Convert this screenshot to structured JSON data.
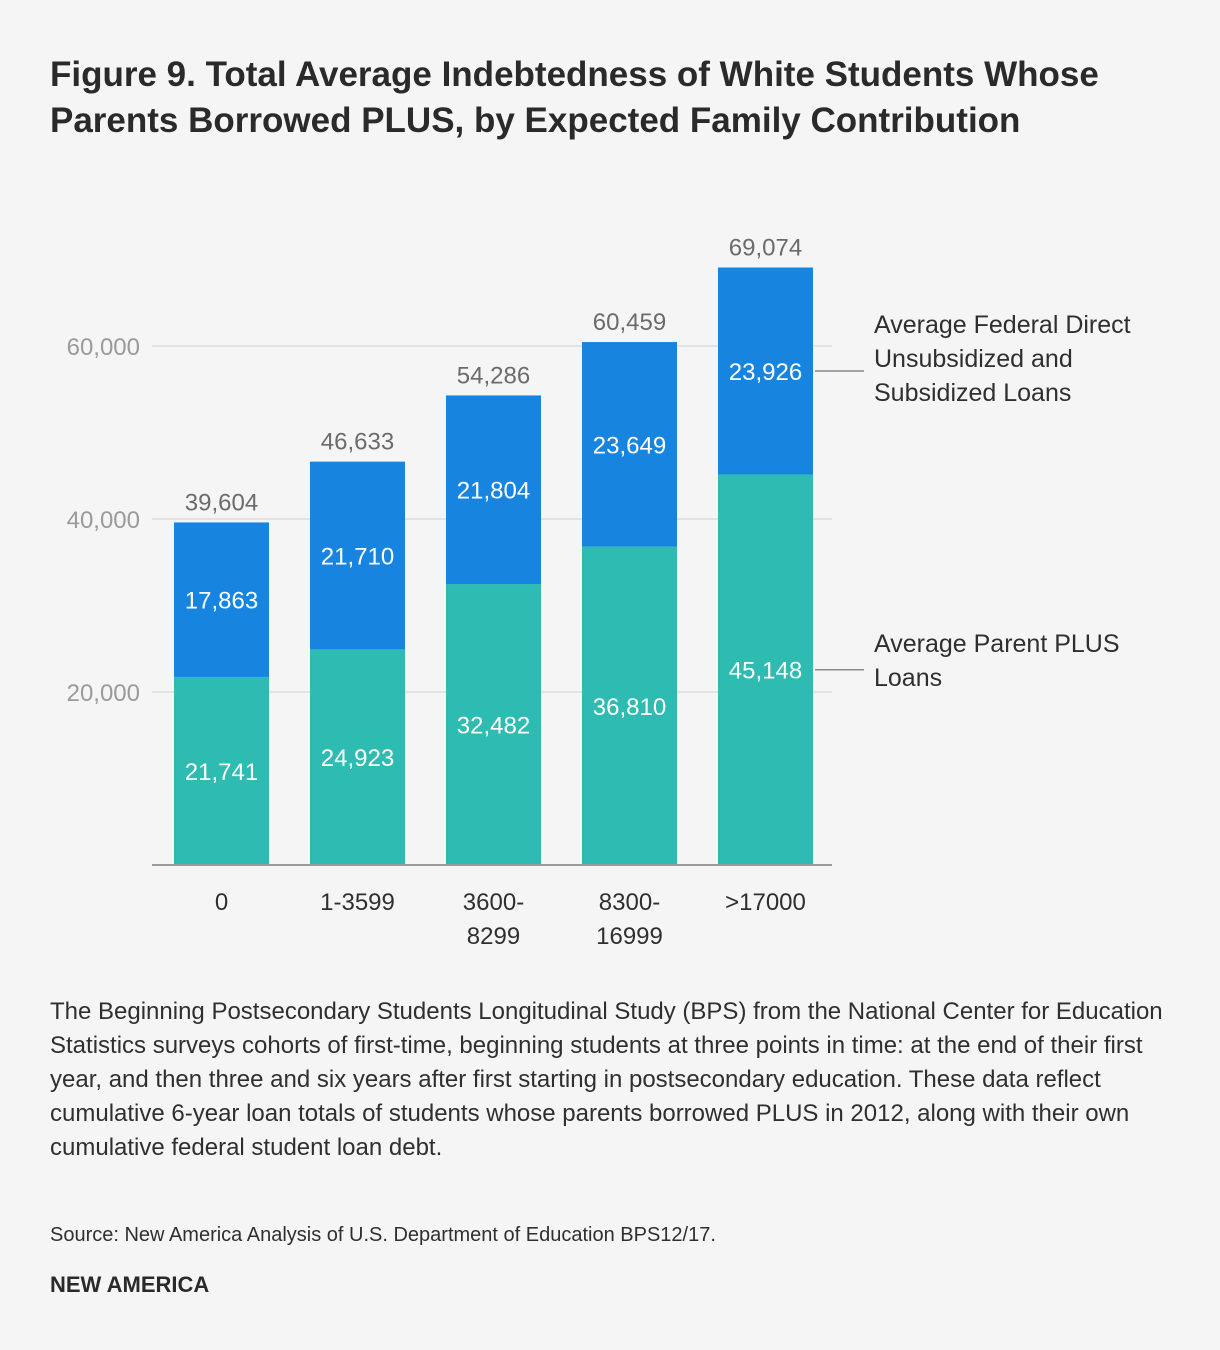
{
  "title": "Figure 9. Total Average Indebtedness of White Students Whose Parents Borrowed PLUS, by Expected Family Contribution",
  "description": "The Beginning Postsecondary Students Longitudinal Study (BPS) from the National Center for Education Statistics surveys cohorts of first-time, beginning students at three points in time: at the end of their first year, and then three and six years after first starting in postsecondary education. These data reflect cumulative 6-year loan totals of students whose parents borrowed PLUS in 2012, along with their own cumulative federal student loan debt.",
  "source": "Source: New America Analysis of U.S. Department of Education BPS12/17.",
  "brand": "NEW AMERICA",
  "colors": {
    "plus": "#2ebbb1",
    "federal": "#1785e0",
    "total_label": "#6b6b6b",
    "axis_label": "#9a9a9a",
    "gridline": "#dcdcdc",
    "axis": "#9a9a9a",
    "bar_label": "#ffffff",
    "text": "#2f2f2f"
  },
  "chart_data": {
    "type": "bar",
    "stacked": true,
    "categories": [
      [
        "0"
      ],
      [
        "1-3599"
      ],
      [
        "3600-",
        "8299"
      ],
      [
        "8300-",
        "16999"
      ],
      [
        ">17000"
      ]
    ],
    "series": [
      {
        "name": "Average Parent PLUS Loans",
        "name_lines": [
          "Average Parent PLUS",
          "Loans"
        ],
        "values": [
          21741,
          24923,
          32482,
          36810,
          45148
        ]
      },
      {
        "name": "Average Federal Direct Unsubsidized and Subsidized Loans",
        "name_lines": [
          "Average Federal Direct",
          "Unsubsidized and",
          "Subsidized Loans"
        ],
        "values": [
          17863,
          21710,
          21804,
          23649,
          23926
        ]
      }
    ],
    "totals": [
      39604,
      46633,
      54286,
      60459,
      69074
    ],
    "value_labels": [
      [
        "21,741",
        "24,923",
        "32,482",
        "36,810",
        "45,148"
      ],
      [
        "17,863",
        "21,710",
        "21,804",
        "23,649",
        "23,926"
      ]
    ],
    "total_labels": [
      "39,604",
      "46,633",
      "54,286",
      "60,459",
      "69,074"
    ],
    "y_ticks": [
      20000,
      40000,
      60000
    ],
    "y_tick_labels": [
      "20,000",
      "40,000",
      "60,000"
    ],
    "ylim": [
      0,
      80000
    ],
    "grid": true,
    "legend": "right, direct labels with leader lines to last bar"
  }
}
